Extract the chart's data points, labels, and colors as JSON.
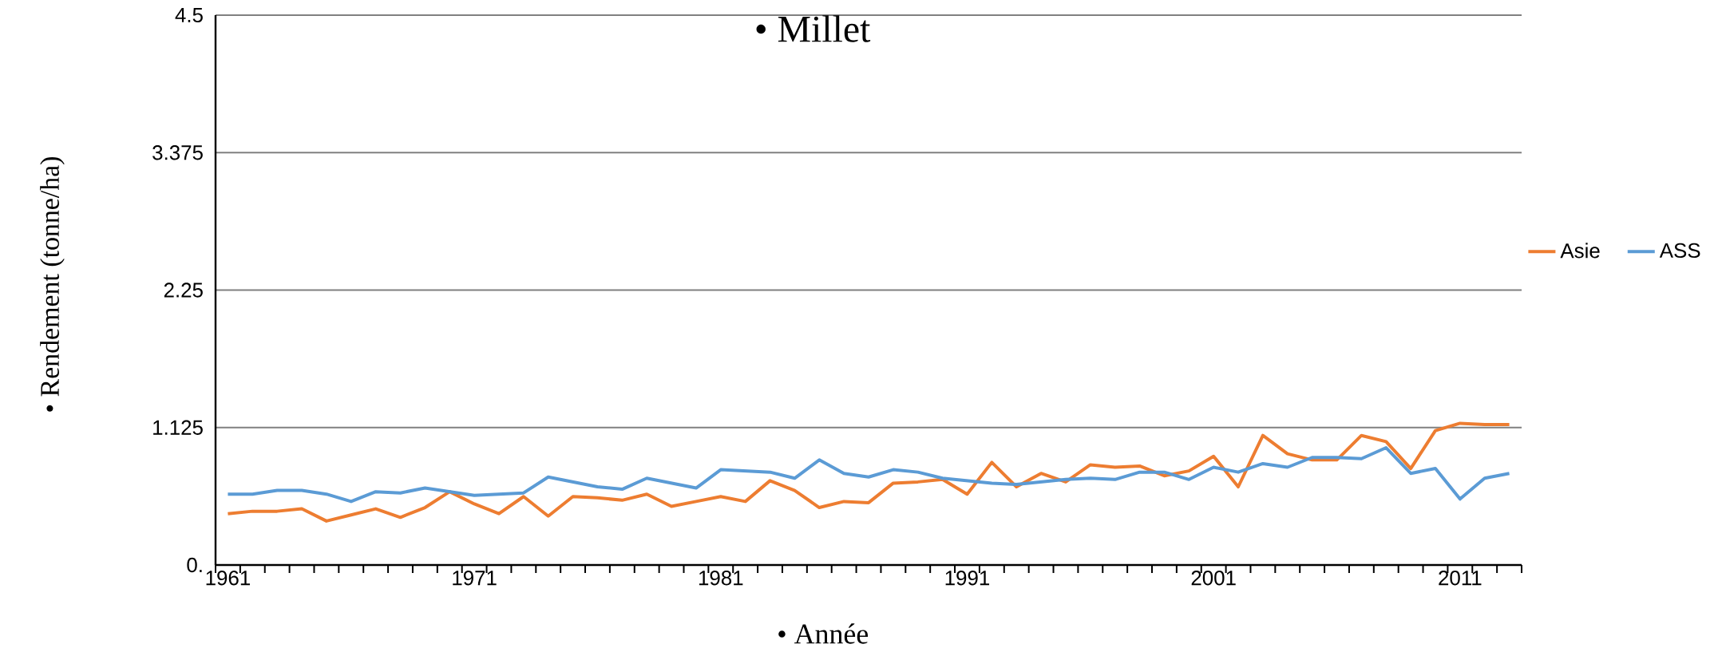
{
  "chart_data": {
    "type": "line",
    "title": "• Millet",
    "xlabel": "• Année",
    "ylabel": "• Rendement (tonne/ha)",
    "x": [
      1961,
      1962,
      1963,
      1964,
      1965,
      1966,
      1967,
      1968,
      1969,
      1970,
      1971,
      1972,
      1973,
      1974,
      1975,
      1976,
      1977,
      1978,
      1979,
      1980,
      1981,
      1982,
      1983,
      1984,
      1985,
      1986,
      1987,
      1988,
      1989,
      1990,
      1991,
      1992,
      1993,
      1994,
      1995,
      1996,
      1997,
      1998,
      1999,
      2000,
      2001,
      2002,
      2003,
      2004,
      2005,
      2006,
      2007,
      2008,
      2009,
      2010,
      2011,
      2012,
      2013
    ],
    "series": [
      {
        "name": "Asie",
        "color": "#ed7d31",
        "values": [
          0.42,
          0.44,
          0.44,
          0.46,
          0.36,
          0.41,
          0.46,
          0.39,
          0.47,
          0.6,
          0.5,
          0.42,
          0.56,
          0.4,
          0.56,
          0.55,
          0.53,
          0.58,
          0.48,
          0.52,
          0.56,
          0.52,
          0.69,
          0.61,
          0.47,
          0.52,
          0.51,
          0.67,
          0.68,
          0.7,
          0.58,
          0.84,
          0.64,
          0.75,
          0.68,
          0.82,
          0.8,
          0.81,
          0.73,
          0.77,
          0.89,
          0.64,
          1.06,
          0.91,
          0.86,
          0.86,
          1.06,
          1.01,
          0.79,
          1.1,
          1.16,
          1.15,
          1.15
        ]
      },
      {
        "name": "ASS",
        "color": "#5b9bd5",
        "values": [
          0.58,
          0.58,
          0.61,
          0.61,
          0.58,
          0.52,
          0.6,
          0.59,
          0.63,
          0.6,
          0.57,
          0.58,
          0.59,
          0.72,
          0.68,
          0.64,
          0.62,
          0.71,
          0.67,
          0.63,
          0.78,
          0.77,
          0.76,
          0.71,
          0.86,
          0.75,
          0.72,
          0.78,
          0.76,
          0.71,
          0.69,
          0.67,
          0.66,
          0.68,
          0.7,
          0.71,
          0.7,
          0.76,
          0.76,
          0.7,
          0.8,
          0.76,
          0.83,
          0.8,
          0.88,
          0.88,
          0.87,
          0.96,
          0.75,
          0.79,
          0.54,
          0.71,
          0.75
        ]
      }
    ],
    "xlim": [
      1960.5,
      2013.5
    ],
    "xticks": [
      1961,
      1971,
      1981,
      1991,
      2001,
      2011
    ],
    "ylim": [
      0,
      4.5
    ],
    "yticks": [
      {
        "value": 0,
        "label": "0."
      },
      1.125,
      2.25,
      3.375,
      4.5
    ],
    "grid": "y",
    "legend": "right",
    "marker": "none",
    "line_style": "solid"
  }
}
